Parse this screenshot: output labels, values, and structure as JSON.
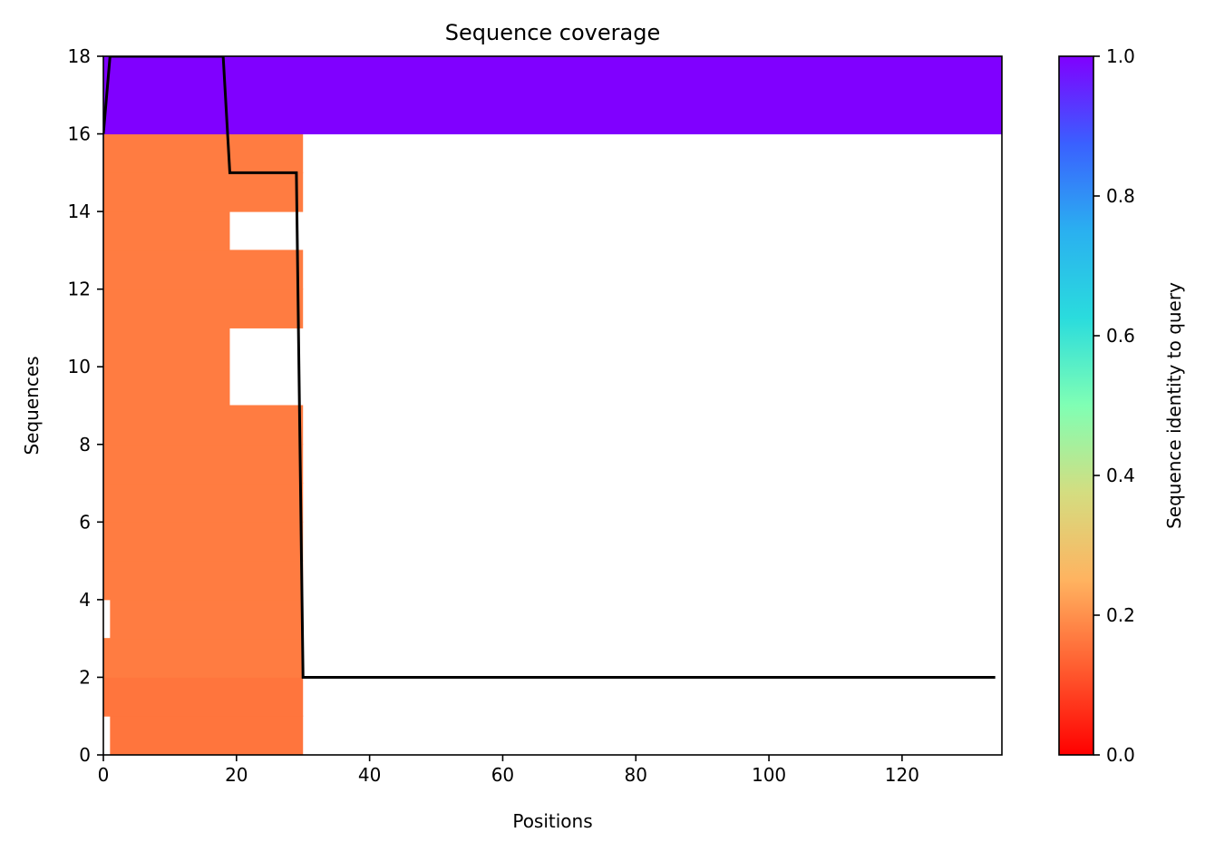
{
  "chart_data": {
    "type": "heatmap",
    "title": "Sequence coverage",
    "xlabel": "Positions",
    "ylabel": "Sequences",
    "xlim": [
      0,
      135
    ],
    "ylim": [
      0,
      18
    ],
    "xticks": [
      0,
      20,
      40,
      60,
      80,
      100,
      120
    ],
    "yticks": [
      0,
      2,
      4,
      6,
      8,
      10,
      12,
      14,
      16,
      18
    ],
    "colormap": "rainbow_r",
    "colorbar": {
      "label": "Sequence identity to query",
      "range": [
        0,
        1
      ],
      "ticks": [
        "0.0",
        "0.2",
        "0.4",
        "0.6",
        "0.8",
        "1.0"
      ]
    },
    "rows": [
      {
        "row": 0,
        "segments": [
          [
            1,
            30
          ]
        ],
        "identity": 0.16
      },
      {
        "row": 1,
        "segments": [
          [
            0,
            30
          ]
        ],
        "identity": 0.16
      },
      {
        "row": 2,
        "segments": [
          [
            0,
            30
          ]
        ],
        "identity": 0.17
      },
      {
        "row": 3,
        "segments": [
          [
            1,
            30
          ]
        ],
        "identity": 0.17
      },
      {
        "row": 4,
        "segments": [
          [
            0,
            30
          ]
        ],
        "identity": 0.17
      },
      {
        "row": 5,
        "segments": [
          [
            0,
            30
          ]
        ],
        "identity": 0.17
      },
      {
        "row": 6,
        "segments": [
          [
            0,
            30
          ]
        ],
        "identity": 0.17
      },
      {
        "row": 7,
        "segments": [
          [
            0,
            30
          ]
        ],
        "identity": 0.17
      },
      {
        "row": 8,
        "segments": [
          [
            0,
            30
          ]
        ],
        "identity": 0.17
      },
      {
        "row": 9,
        "segments": [
          [
            0,
            19
          ]
        ],
        "identity": 0.17
      },
      {
        "row": 10,
        "segments": [
          [
            0,
            19
          ]
        ],
        "identity": 0.17
      },
      {
        "row": 11,
        "segments": [
          [
            0,
            30
          ]
        ],
        "identity": 0.17
      },
      {
        "row": 12,
        "segments": [
          [
            0,
            30
          ]
        ],
        "identity": 0.17
      },
      {
        "row": 13,
        "segments": [
          [
            0,
            19
          ]
        ],
        "identity": 0.17
      },
      {
        "row": 14,
        "segments": [
          [
            0,
            30
          ]
        ],
        "identity": 0.17
      },
      {
        "row": 15,
        "segments": [
          [
            0,
            30
          ]
        ],
        "identity": 0.17
      },
      {
        "row": 16,
        "segments": [
          [
            0,
            135
          ]
        ],
        "identity": 1.0
      },
      {
        "row": 17,
        "segments": [
          [
            0,
            135
          ]
        ],
        "identity": 1.0
      }
    ],
    "coverage_line": {
      "color": "#000000",
      "x": [
        0,
        1,
        18,
        19,
        29,
        30,
        134
      ],
      "y": [
        16,
        18,
        18,
        15,
        15,
        2,
        2
      ]
    }
  }
}
